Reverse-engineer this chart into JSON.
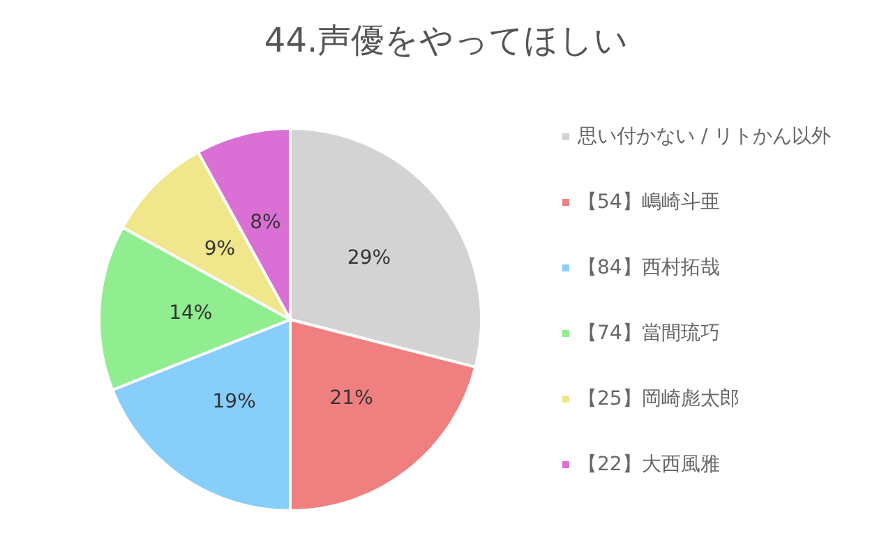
{
  "chart_data": {
    "type": "pie",
    "title": "44.声優をやってほしい",
    "categories": [
      "思い付かない / リトかん以外",
      "【54】嶋崎斗亜",
      "【84】西村拓哉",
      "【74】當間琉巧",
      "【25】岡崎彪太郎",
      "【22】大西風雅"
    ],
    "values": [
      29,
      21,
      19,
      14,
      9,
      8
    ],
    "colors": [
      "#d3d3d3",
      "#f08080",
      "#87cefa",
      "#90ee90",
      "#f0e68c",
      "#da70d6"
    ],
    "value_labels": [
      "29%",
      "21%",
      "19%",
      "14%",
      "9%",
      "8%"
    ],
    "legend": "right"
  }
}
